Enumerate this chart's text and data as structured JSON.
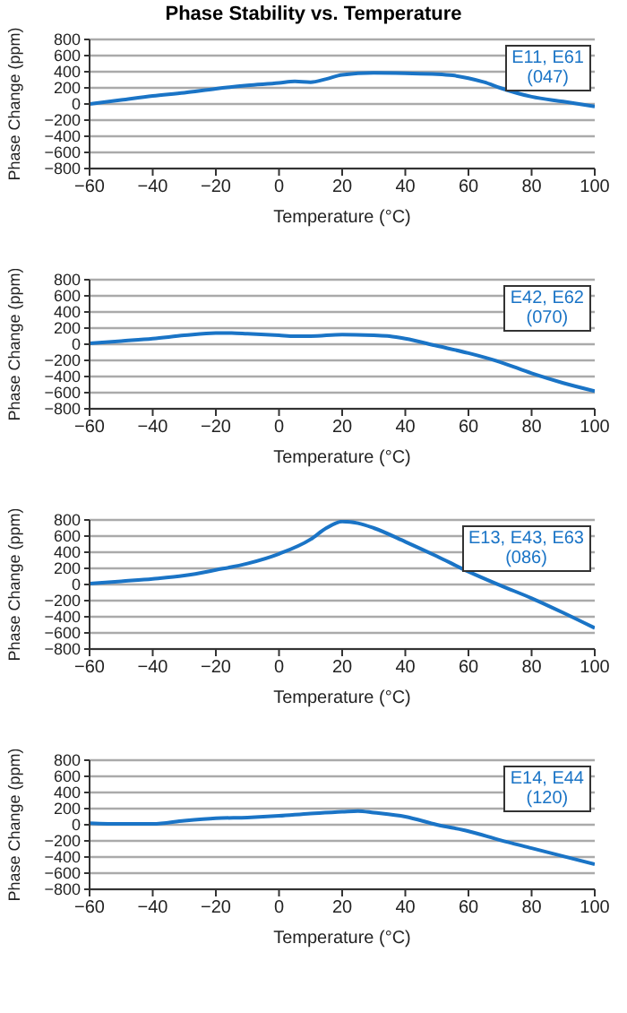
{
  "chart_data": [
    {
      "type": "line",
      "title": "Phase Stability vs. Temperature",
      "xlabel": "Temperature (°C)",
      "ylabel": "Phase Change (ppm)",
      "xlim": [
        -60,
        100
      ],
      "xticks": [
        -60,
        -40,
        -20,
        0,
        20,
        40,
        60,
        80,
        100
      ],
      "ylim": [
        -800,
        800
      ],
      "yticks": [
        -800,
        -600,
        -400,
        -200,
        0,
        200,
        400,
        600,
        800
      ],
      "grid": "y",
      "legend": "top right",
      "marker": "none",
      "line_style": "solid",
      "series": [
        {
          "name": "E11, E61\n(047)",
          "color": "#1a74c6",
          "x": [
            -60,
            -50,
            -40,
            -30,
            -20,
            -10,
            0,
            5,
            10,
            15,
            20,
            30,
            40,
            50,
            55,
            60,
            65,
            70,
            80,
            90,
            100
          ],
          "values": [
            0,
            50,
            100,
            140,
            190,
            230,
            260,
            280,
            270,
            310,
            360,
            385,
            380,
            370,
            355,
            320,
            270,
            200,
            90,
            30,
            -30
          ]
        }
      ]
    },
    {
      "type": "line",
      "xlabel": "Temperature (°C)",
      "ylabel": "Phase Change (ppm)",
      "xlim": [
        -60,
        100
      ],
      "xticks": [
        -60,
        -40,
        -20,
        0,
        20,
        40,
        60,
        80,
        100
      ],
      "ylim": [
        -800,
        800
      ],
      "yticks": [
        -800,
        -600,
        -400,
        -200,
        0,
        200,
        400,
        600,
        800
      ],
      "grid": "y",
      "legend": "top right",
      "marker": "none",
      "line_style": "solid",
      "series": [
        {
          "name": "E42, E62\n(070)",
          "color": "#1a74c6",
          "x": [
            -60,
            -50,
            -40,
            -30,
            -20,
            -15,
            -10,
            0,
            5,
            10,
            20,
            30,
            35,
            40,
            50,
            60,
            70,
            80,
            90,
            100
          ],
          "values": [
            10,
            40,
            70,
            110,
            140,
            140,
            130,
            110,
            100,
            100,
            120,
            110,
            100,
            70,
            -20,
            -110,
            -220,
            -360,
            -480,
            -580
          ]
        }
      ]
    },
    {
      "type": "line",
      "xlabel": "Temperature (°C)",
      "ylabel": "Phase Change (ppm)",
      "xlim": [
        -60,
        100
      ],
      "xticks": [
        -60,
        -40,
        -20,
        0,
        20,
        40,
        60,
        80,
        100
      ],
      "ylim": [
        -800,
        800
      ],
      "yticks": [
        -800,
        -600,
        -400,
        -200,
        0,
        200,
        400,
        600,
        800
      ],
      "grid": "y",
      "legend": "top right",
      "marker": "none",
      "line_style": "solid",
      "series": [
        {
          "name": "E13, E43, E63\n(086)",
          "color": "#1a74c6",
          "x": [
            -60,
            -50,
            -40,
            -30,
            -20,
            -10,
            0,
            10,
            15,
            20,
            25,
            30,
            40,
            50,
            60,
            70,
            80,
            90,
            100
          ],
          "values": [
            10,
            40,
            70,
            110,
            180,
            260,
            380,
            560,
            700,
            780,
            760,
            700,
            530,
            350,
            160,
            -10,
            -170,
            -350,
            -540
          ]
        }
      ]
    },
    {
      "type": "line",
      "xlabel": "Temperature (°C)",
      "ylabel": "Phase Change (ppm)",
      "xlim": [
        -60,
        100
      ],
      "xticks": [
        -60,
        -40,
        -20,
        0,
        20,
        40,
        60,
        80,
        100
      ],
      "ylim": [
        -800,
        800
      ],
      "yticks": [
        -800,
        -600,
        -400,
        -200,
        0,
        200,
        400,
        600,
        800
      ],
      "grid": "y",
      "legend": "top right",
      "marker": "none",
      "line_style": "solid",
      "series": [
        {
          "name": "E14, E44\n(120)",
          "color": "#1a74c6",
          "x": [
            -60,
            -50,
            -40,
            -30,
            -20,
            -10,
            0,
            10,
            20,
            25,
            30,
            40,
            50,
            60,
            70,
            80,
            90,
            100
          ],
          "values": [
            20,
            10,
            10,
            50,
            80,
            90,
            110,
            140,
            160,
            170,
            150,
            100,
            0,
            -80,
            -190,
            -290,
            -390,
            -490
          ]
        }
      ]
    }
  ]
}
